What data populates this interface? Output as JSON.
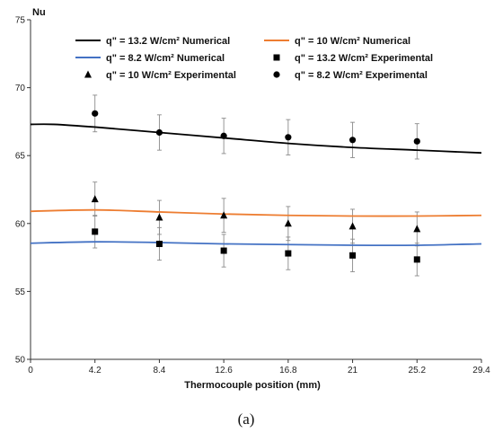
{
  "chart_data": {
    "type": "line",
    "caption": "(a)",
    "xlabel": "Thermocouple position (mm)",
    "ylabel": "Nu",
    "xlim": [
      0,
      29.4
    ],
    "ylim": [
      50,
      75
    ],
    "xticks": [
      "0",
      "4.2",
      "8.4",
      "12.6",
      "16.8",
      "21",
      "25.2",
      "29.4"
    ],
    "yticks": [
      "50",
      "55",
      "60",
      "65",
      "70",
      "75"
    ],
    "grid": false,
    "legend_position": "top",
    "series": [
      {
        "name": "q\" = 13.2 W/cm² Numerical",
        "kind": "line",
        "color": "#000000",
        "x": [
          0,
          1.5,
          4.2,
          8.4,
          12.6,
          16.8,
          21,
          25.2,
          29.4
        ],
        "y": [
          67.3,
          67.3,
          67.1,
          66.7,
          66.3,
          65.9,
          65.6,
          65.4,
          65.2
        ]
      },
      {
        "name": "q\" = 10 W/cm² Numerical",
        "kind": "line",
        "color": "#ED7D31",
        "x": [
          0,
          4.2,
          8.4,
          12.6,
          16.8,
          21,
          25.2,
          29.4
        ],
        "y": [
          60.9,
          61.0,
          60.85,
          60.7,
          60.6,
          60.55,
          60.55,
          60.6
        ]
      },
      {
        "name": "q\" = 8.2 W/cm² Numerical",
        "kind": "line",
        "color": "#4472C4",
        "x": [
          0,
          4.2,
          8.4,
          12.6,
          16.8,
          21,
          25.2,
          29.4
        ],
        "y": [
          58.55,
          58.65,
          58.6,
          58.5,
          58.45,
          58.4,
          58.4,
          58.5
        ]
      },
      {
        "name": "q\" = 13.2 W/cm² Experimental",
        "kind": "scatter",
        "marker": "square",
        "color": "#000000",
        "x": [
          4.2,
          8.4,
          12.6,
          16.8,
          21,
          25.2
        ],
        "y": [
          59.4,
          58.5,
          58.0,
          57.8,
          57.65,
          57.35
        ],
        "err": [
          1.2,
          1.2,
          1.2,
          1.2,
          1.2,
          1.2
        ]
      },
      {
        "name": "q\" = 10 W/cm² Experimental",
        "kind": "scatter",
        "marker": "triangle",
        "color": "#000000",
        "x": [
          4.2,
          8.4,
          12.6,
          16.8,
          21,
          25.2
        ],
        "y": [
          61.8,
          60.45,
          60.6,
          60.0,
          59.8,
          59.6
        ],
        "err": [
          1.25,
          1.25,
          1.25,
          1.25,
          1.25,
          1.25
        ]
      },
      {
        "name": "q\" = 8.2 W/cm² Experimental",
        "kind": "scatter",
        "marker": "circle",
        "color": "#000000",
        "x": [
          4.2,
          8.4,
          12.6,
          16.8,
          21,
          25.2
        ],
        "y": [
          68.1,
          66.7,
          66.45,
          66.35,
          66.15,
          66.05
        ],
        "err": [
          1.35,
          1.3,
          1.3,
          1.3,
          1.3,
          1.3
        ]
      }
    ]
  }
}
